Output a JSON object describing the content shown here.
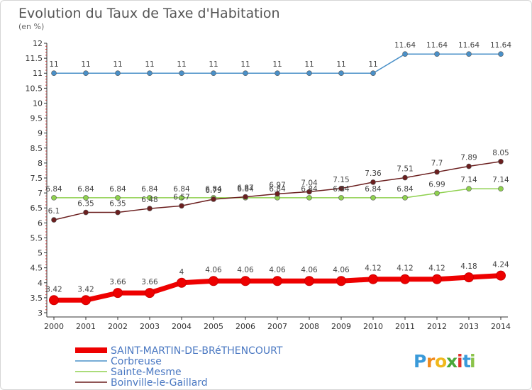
{
  "chart_data": {
    "type": "line",
    "title": "Evolution du Taux de Taxe d'Habitation",
    "subtitle": "(en %)",
    "x": [
      2000,
      2001,
      2002,
      2003,
      2004,
      2005,
      2006,
      2007,
      2008,
      2009,
      2010,
      2011,
      2012,
      2013,
      2014
    ],
    "ylim": [
      3,
      12
    ],
    "y_ticks": [
      "3",
      "3.5",
      "4",
      "4.5",
      "5",
      "5.5",
      "6",
      "6.5",
      "7",
      "7.5",
      "8",
      "8.5",
      "9",
      "9.5",
      "10",
      "10.5",
      "11",
      "11.5",
      "12"
    ],
    "grid": false,
    "legend_position": "bottom-left",
    "series": [
      {
        "name": "Corbreuse",
        "color": "#4a90c8",
        "values": [
          11,
          11,
          11,
          11,
          11,
          11,
          11,
          11,
          11,
          11,
          11,
          11.64,
          11.64,
          11.64,
          11.64
        ],
        "labels": [
          "11",
          "11",
          "11",
          "11",
          "11",
          "11",
          "11",
          "11",
          "11",
          "11",
          "11",
          "11.64",
          "11.64",
          "11.64",
          "11.64"
        ]
      },
      {
        "name": "Sainte-Mesme",
        "color": "#8fd14f",
        "values": [
          6.84,
          6.84,
          6.84,
          6.84,
          6.84,
          6.84,
          6.84,
          6.84,
          6.84,
          6.84,
          6.84,
          6.84,
          6.99,
          7.14,
          7.14
        ],
        "labels": [
          "6.84",
          "6.84",
          "6.84",
          "6.84",
          "6.84",
          "6.84",
          "6.84",
          "6.84",
          "6.84",
          "6.84",
          "6.84",
          "6.84",
          "6.99",
          "7.14",
          "7.14"
        ]
      },
      {
        "name": "Boinville-le-Gaillard",
        "color": "#6b1f1f",
        "values": [
          6.1,
          6.35,
          6.35,
          6.48,
          6.57,
          6.79,
          6.87,
          6.97,
          7.04,
          7.15,
          7.36,
          7.51,
          7.7,
          7.89,
          8.05
        ],
        "labels": [
          "6.1",
          "6.35",
          "6.35",
          "6.48",
          "6.57",
          "6.79",
          "6.87",
          "6.97",
          "7.04",
          "7.15",
          "7.36",
          "7.51",
          "7.7",
          "7.89",
          "8.05"
        ]
      },
      {
        "name": "SAINT-MARTIN-DE-BRéTHENCOURT",
        "color": "#ee0000",
        "values": [
          3.42,
          3.42,
          3.66,
          3.66,
          4,
          4.06,
          4.06,
          4.06,
          4.06,
          4.06,
          4.12,
          4.12,
          4.12,
          4.18,
          4.24
        ],
        "labels": [
          "3.42",
          "3.42",
          "3.66",
          "3.66",
          "4",
          "4.06",
          "4.06",
          "4.06",
          "4.06",
          "4.06",
          "4.12",
          "4.12",
          "4.12",
          "4.18",
          "4.24"
        ]
      }
    ],
    "legend": [
      {
        "label": "SAINT-MARTIN-DE-BRéTHENCOURT",
        "color": "#ee0000"
      },
      {
        "label": "Corbreuse",
        "color": "#4a90c8"
      },
      {
        "label": "Sainte-Mesme",
        "color": "#8fd14f"
      },
      {
        "label": "Boinville-le-Gaillard",
        "color": "#6b1f1f"
      }
    ]
  },
  "logo": {
    "letters": [
      "P",
      "r",
      "o",
      "x",
      "i",
      "t",
      "i"
    ],
    "colors": [
      "#3a9ad9",
      "#f08a1c",
      "#f0b81c",
      "#4aa83a",
      "#e0322c",
      "#3a9ad9",
      "#8bc34a"
    ]
  }
}
